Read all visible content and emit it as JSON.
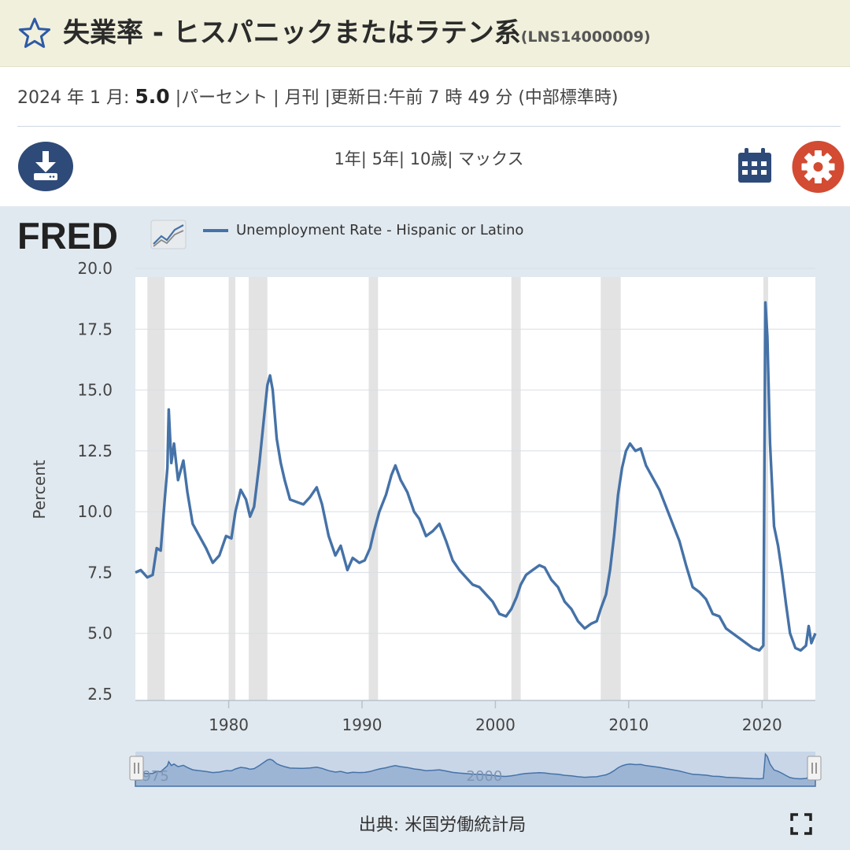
{
  "header": {
    "title": "失業率 - ヒスパニックまたはラテン系",
    "series_id": "(LNS14000009)"
  },
  "meta": {
    "date_label": "2024 年 1 月:",
    "value": "5.0",
    "units": "|パーセント |",
    "frequency": "月刊",
    "updated": "|更新日:午前 7 時 49 分 (中部標準時)"
  },
  "range": {
    "items": [
      "1年|",
      "5年|",
      "10歳|",
      "マックス"
    ]
  },
  "icons": {
    "favorite": "star-icon",
    "download": "download-icon",
    "calendar": "calendar-icon",
    "settings": "gear-icon",
    "fullscreen": "fullscreen-icon"
  },
  "colors": {
    "line": "#4572a7",
    "recession": "#e3e3e3",
    "panel": "#e1e9f0",
    "title_bar": "#f1f0dc",
    "download_bg": "#2e4a78",
    "calendar": "#2e4a78",
    "settings_bg": "#d24b32"
  },
  "logo": {
    "text": "FRED"
  },
  "chart_data": {
    "type": "line",
    "title": "",
    "legend_position": "top-left",
    "series": [
      {
        "name": "Unemployment Rate - Hispanic or Latino",
        "points": [
          [
            1973.0,
            7.5
          ],
          [
            1973.4,
            7.6
          ],
          [
            1973.9,
            7.3
          ],
          [
            1974.3,
            7.4
          ],
          [
            1974.6,
            8.5
          ],
          [
            1974.9,
            8.4
          ],
          [
            1975.2,
            10.5
          ],
          [
            1975.4,
            11.8
          ],
          [
            1975.5,
            14.2
          ],
          [
            1975.7,
            12.0
          ],
          [
            1975.9,
            12.8
          ],
          [
            1976.2,
            11.3
          ],
          [
            1976.6,
            12.1
          ],
          [
            1976.9,
            10.8
          ],
          [
            1977.3,
            9.5
          ],
          [
            1977.8,
            9.0
          ],
          [
            1978.3,
            8.5
          ],
          [
            1978.8,
            7.9
          ],
          [
            1979.3,
            8.2
          ],
          [
            1979.8,
            9.0
          ],
          [
            1980.2,
            8.9
          ],
          [
            1980.5,
            10.0
          ],
          [
            1980.9,
            10.9
          ],
          [
            1981.3,
            10.5
          ],
          [
            1981.6,
            9.8
          ],
          [
            1981.9,
            10.2
          ],
          [
            1982.3,
            12.0
          ],
          [
            1982.6,
            13.6
          ],
          [
            1982.9,
            15.2
          ],
          [
            1983.1,
            15.6
          ],
          [
            1983.3,
            15.0
          ],
          [
            1983.6,
            13.0
          ],
          [
            1983.9,
            12.0
          ],
          [
            1984.2,
            11.3
          ],
          [
            1984.6,
            10.5
          ],
          [
            1985.1,
            10.4
          ],
          [
            1985.6,
            10.3
          ],
          [
            1986.1,
            10.6
          ],
          [
            1986.6,
            11.0
          ],
          [
            1987.0,
            10.3
          ],
          [
            1987.5,
            9.0
          ],
          [
            1988.0,
            8.2
          ],
          [
            1988.4,
            8.6
          ],
          [
            1988.9,
            7.6
          ],
          [
            1989.3,
            8.1
          ],
          [
            1989.8,
            7.9
          ],
          [
            1990.2,
            8.0
          ],
          [
            1990.6,
            8.5
          ],
          [
            1990.9,
            9.2
          ],
          [
            1991.3,
            10.0
          ],
          [
            1991.8,
            10.7
          ],
          [
            1992.2,
            11.5
          ],
          [
            1992.5,
            11.9
          ],
          [
            1992.9,
            11.3
          ],
          [
            1993.4,
            10.8
          ],
          [
            1993.9,
            10.0
          ],
          [
            1994.3,
            9.7
          ],
          [
            1994.8,
            9.0
          ],
          [
            1995.3,
            9.2
          ],
          [
            1995.8,
            9.5
          ],
          [
            1996.3,
            8.8
          ],
          [
            1996.8,
            8.0
          ],
          [
            1997.3,
            7.6
          ],
          [
            1997.8,
            7.3
          ],
          [
            1998.3,
            7.0
          ],
          [
            1998.8,
            6.9
          ],
          [
            1999.3,
            6.6
          ],
          [
            1999.8,
            6.3
          ],
          [
            2000.3,
            5.8
          ],
          [
            2000.8,
            5.7
          ],
          [
            2001.2,
            6.0
          ],
          [
            2001.6,
            6.5
          ],
          [
            2001.9,
            7.0
          ],
          [
            2002.3,
            7.4
          ],
          [
            2002.8,
            7.6
          ],
          [
            2003.3,
            7.8
          ],
          [
            2003.7,
            7.7
          ],
          [
            2004.2,
            7.2
          ],
          [
            2004.7,
            6.9
          ],
          [
            2005.2,
            6.3
          ],
          [
            2005.7,
            6.0
          ],
          [
            2006.2,
            5.5
          ],
          [
            2006.7,
            5.2
          ],
          [
            2007.2,
            5.4
          ],
          [
            2007.6,
            5.5
          ],
          [
            2007.9,
            6.0
          ],
          [
            2008.3,
            6.6
          ],
          [
            2008.6,
            7.6
          ],
          [
            2008.9,
            9.0
          ],
          [
            2009.2,
            10.7
          ],
          [
            2009.5,
            11.8
          ],
          [
            2009.8,
            12.5
          ],
          [
            2010.1,
            12.8
          ],
          [
            2010.5,
            12.5
          ],
          [
            2010.9,
            12.6
          ],
          [
            2011.3,
            11.9
          ],
          [
            2011.8,
            11.4
          ],
          [
            2012.3,
            10.9
          ],
          [
            2012.8,
            10.2
          ],
          [
            2013.3,
            9.5
          ],
          [
            2013.8,
            8.8
          ],
          [
            2014.3,
            7.8
          ],
          [
            2014.8,
            6.9
          ],
          [
            2015.3,
            6.7
          ],
          [
            2015.8,
            6.4
          ],
          [
            2016.3,
            5.8
          ],
          [
            2016.8,
            5.7
          ],
          [
            2017.3,
            5.2
          ],
          [
            2017.8,
            5.0
          ],
          [
            2018.3,
            4.8
          ],
          [
            2018.8,
            4.6
          ],
          [
            2019.3,
            4.4
          ],
          [
            2019.8,
            4.3
          ],
          [
            2020.1,
            4.5
          ],
          [
            2020.25,
            18.6
          ],
          [
            2020.4,
            17.2
          ],
          [
            2020.6,
            12.8
          ],
          [
            2020.9,
            9.4
          ],
          [
            2021.2,
            8.6
          ],
          [
            2021.5,
            7.5
          ],
          [
            2021.8,
            6.2
          ],
          [
            2022.1,
            5.0
          ],
          [
            2022.5,
            4.4
          ],
          [
            2022.9,
            4.3
          ],
          [
            2023.3,
            4.5
          ],
          [
            2023.5,
            5.3
          ],
          [
            2023.7,
            4.6
          ],
          [
            2024.0,
            5.0
          ]
        ]
      }
    ],
    "recessions": [
      [
        1973.9,
        1975.2
      ],
      [
        1980.0,
        1980.5
      ],
      [
        1981.5,
        1982.9
      ],
      [
        1990.5,
        1991.2
      ],
      [
        2001.2,
        2001.9
      ],
      [
        2007.9,
        2009.4
      ],
      [
        2020.1,
        2020.3
      ]
    ],
    "xlim": [
      1973.0,
      2024.0
    ],
    "ylim": [
      2.5,
      20.0
    ],
    "x_ticks": [
      1980,
      1990,
      2000,
      2010,
      2020
    ],
    "y_ticks": [
      2.5,
      5.0,
      7.5,
      10.0,
      12.5,
      15.0,
      17.5,
      20.0
    ],
    "y_tick_labels": [
      "2.5",
      "5.0",
      "7.5",
      "10.0",
      "12.5",
      "15.0",
      "17.5",
      "20.0"
    ],
    "ylabel": "Percent",
    "grid": true,
    "navigator": {
      "labels": [
        "1975",
        "2000"
      ],
      "label_years": [
        1975,
        2000
      ]
    }
  },
  "source": {
    "text": "出典: 米国労働統計局"
  }
}
